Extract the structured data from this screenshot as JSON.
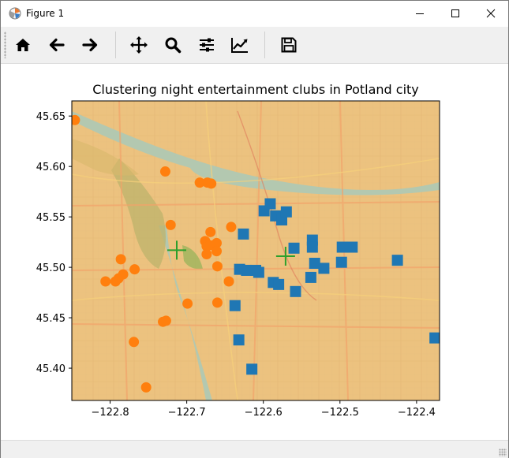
{
  "window": {
    "title": "Figure 1",
    "app_icon": "matplotlib-icon",
    "controls": [
      "minimize-icon",
      "maximize-icon",
      "close-icon"
    ]
  },
  "toolbar": {
    "buttons": [
      {
        "name": "home-button",
        "icon": "home-icon"
      },
      {
        "name": "back-button",
        "icon": "arrow-left-icon"
      },
      {
        "name": "forward-button",
        "icon": "arrow-right-icon"
      },
      {
        "name": "pan-button",
        "icon": "move-icon"
      },
      {
        "name": "zoom-button",
        "icon": "magnifier-icon"
      },
      {
        "name": "subplots-button",
        "icon": "sliders-icon"
      },
      {
        "name": "edit-axes-button",
        "icon": "line-chart-icon"
      },
      {
        "name": "save-button",
        "icon": "floppy-disk-icon"
      }
    ]
  },
  "chart_data": {
    "type": "scatter",
    "title": "Clustering night entertainment clubs in Potland city",
    "xlabel": "",
    "ylabel": "",
    "xlim": [
      -122.85,
      -122.37
    ],
    "ylim": [
      45.368,
      45.665
    ],
    "xticks": [
      -122.8,
      -122.7,
      -122.6,
      -122.5,
      -122.4
    ],
    "xtick_labels": [
      "−122.8",
      "−122.7",
      "−122.6",
      "−122.5",
      "−122.4"
    ],
    "yticks": [
      45.4,
      45.45,
      45.5,
      45.55,
      45.6,
      45.65
    ],
    "ytick_labels": [
      "45.40",
      "45.45",
      "45.50",
      "45.55",
      "45.60",
      "45.65"
    ],
    "background": "street map",
    "grid": false,
    "series": [
      {
        "marker": "circle",
        "color": "#ff7f0e",
        "points": [
          [
            -122.846,
            45.646
          ],
          [
            -122.728,
            45.595
          ],
          [
            -122.683,
            45.584
          ],
          [
            -122.673,
            45.584
          ],
          [
            -122.668,
            45.583
          ],
          [
            -122.721,
            45.542
          ],
          [
            -122.669,
            45.535
          ],
          [
            -122.642,
            45.54
          ],
          [
            -122.676,
            45.526
          ],
          [
            -122.674,
            45.521
          ],
          [
            -122.67,
            45.522
          ],
          [
            -122.661,
            45.524
          ],
          [
            -122.661,
            45.516
          ],
          [
            -122.674,
            45.513
          ],
          [
            -122.66,
            45.501
          ],
          [
            -122.786,
            45.508
          ],
          [
            -122.768,
            45.498
          ],
          [
            -122.783,
            45.493
          ],
          [
            -122.789,
            45.489
          ],
          [
            -122.793,
            45.486
          ],
          [
            -122.806,
            45.486
          ],
          [
            -122.645,
            45.486
          ],
          [
            -122.699,
            45.464
          ],
          [
            -122.66,
            45.465
          ],
          [
            -122.731,
            45.446
          ],
          [
            -122.727,
            45.447
          ],
          [
            -122.769,
            45.426
          ],
          [
            -122.753,
            45.381
          ]
        ]
      },
      {
        "marker": "square",
        "color": "#1f77b4",
        "points": [
          [
            -122.599,
            45.556
          ],
          [
            -122.591,
            45.563
          ],
          [
            -122.584,
            45.551
          ],
          [
            -122.576,
            45.547
          ],
          [
            -122.57,
            45.555
          ],
          [
            -122.626,
            45.533
          ],
          [
            -122.56,
            45.519
          ],
          [
            -122.536,
            45.527
          ],
          [
            -122.536,
            45.52
          ],
          [
            -122.497,
            45.52
          ],
          [
            -122.484,
            45.52
          ],
          [
            -122.425,
            45.507
          ],
          [
            -122.533,
            45.504
          ],
          [
            -122.521,
            45.499
          ],
          [
            -122.498,
            45.505
          ],
          [
            -122.631,
            45.498
          ],
          [
            -122.622,
            45.497
          ],
          [
            -122.61,
            45.497
          ],
          [
            -122.606,
            45.495
          ],
          [
            -122.538,
            45.49
          ],
          [
            -122.587,
            45.485
          ],
          [
            -122.58,
            45.483
          ],
          [
            -122.558,
            45.476
          ],
          [
            -122.637,
            45.462
          ],
          [
            -122.632,
            45.428
          ],
          [
            -122.615,
            45.399
          ],
          [
            -122.376,
            45.43
          ]
        ]
      },
      {
        "marker": "plus",
        "color": "#2ca02c",
        "points": [
          [
            -122.713,
            45.517
          ],
          [
            -122.571,
            45.511
          ]
        ]
      }
    ]
  }
}
